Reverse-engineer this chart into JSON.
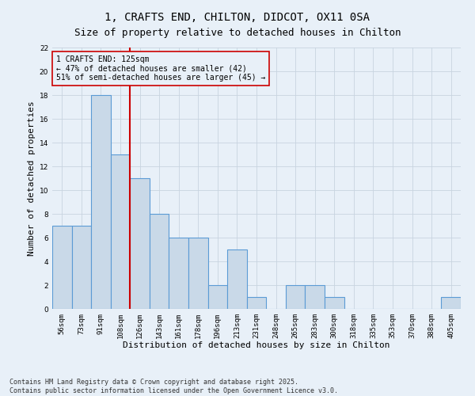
{
  "title_line1": "1, CRAFTS END, CHILTON, DIDCOT, OX11 0SA",
  "title_line2": "Size of property relative to detached houses in Chilton",
  "xlabel": "Distribution of detached houses by size in Chilton",
  "ylabel": "Number of detached properties",
  "categories": [
    "56sqm",
    "73sqm",
    "91sqm",
    "108sqm",
    "126sqm",
    "143sqm",
    "161sqm",
    "178sqm",
    "196sqm",
    "213sqm",
    "231sqm",
    "248sqm",
    "265sqm",
    "283sqm",
    "300sqm",
    "318sqm",
    "335sqm",
    "353sqm",
    "370sqm",
    "388sqm",
    "405sqm"
  ],
  "values": [
    7,
    7,
    18,
    13,
    11,
    8,
    6,
    6,
    2,
    5,
    1,
    0,
    2,
    2,
    1,
    0,
    0,
    0,
    0,
    0,
    1
  ],
  "bar_color": "#c9d9e8",
  "bar_edge_color": "#5b9bd5",
  "bar_edge_width": 0.8,
  "highlight_line_index": 4,
  "highlight_line_color": "#cc0000",
  "annotation_box_color": "#cc0000",
  "annotation_text_line1": "1 CRAFTS END: 125sqm",
  "annotation_text_line2": "← 47% of detached houses are smaller (42)",
  "annotation_text_line3": "51% of semi-detached houses are larger (45) →",
  "ylim": [
    0,
    22
  ],
  "yticks": [
    0,
    2,
    4,
    6,
    8,
    10,
    12,
    14,
    16,
    18,
    20,
    22
  ],
  "grid_color": "#c8d4e0",
  "bg_color": "#e8f0f8",
  "footer_text": "Contains HM Land Registry data © Crown copyright and database right 2025.\nContains public sector information licensed under the Open Government Licence v3.0.",
  "title_fontsize": 10,
  "subtitle_fontsize": 9,
  "axis_label_fontsize": 8,
  "tick_fontsize": 6.5,
  "annotation_fontsize": 7,
  "footer_fontsize": 6
}
